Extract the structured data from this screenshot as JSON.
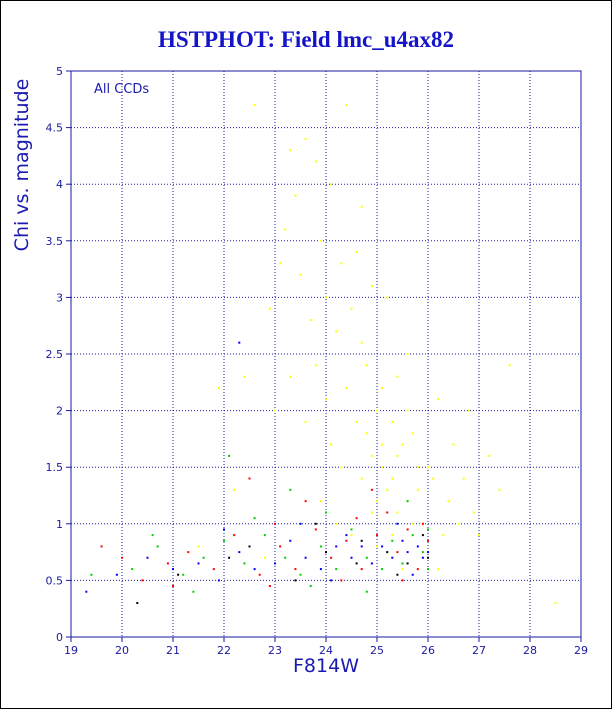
{
  "chart_data": {
    "type": "scatter",
    "title": "HSTPHOT: Field lmc_u4ax82",
    "xlabel": "F814W",
    "ylabel": "Chi vs. magnitude",
    "annotation": "All CCDs",
    "xlim": [
      19,
      29
    ],
    "ylim": [
      0,
      5
    ],
    "xticks": [
      19,
      20,
      21,
      22,
      23,
      24,
      25,
      26,
      27,
      28,
      29
    ],
    "yticks": [
      0,
      0.5,
      1,
      1.5,
      2,
      2.5,
      3,
      3.5,
      4,
      4.5,
      5
    ],
    "xtick_labels": [
      "19",
      "20",
      "21",
      "22",
      "23",
      "24",
      "25",
      "26",
      "27",
      "28",
      "29"
    ],
    "ytick_labels": [
      "0",
      "0.5",
      "1",
      "1.5",
      "2",
      "2.5",
      "3",
      "3.5",
      "4",
      "4.5",
      "5"
    ],
    "grid": true,
    "series": [
      {
        "color": "#ffff00",
        "points": [
          [
            22.6,
            4.7
          ],
          [
            23.3,
            4.3
          ],
          [
            23.6,
            4.4
          ],
          [
            23.8,
            4.2
          ],
          [
            24.1,
            4.0
          ],
          [
            24.4,
            4.7
          ],
          [
            23.4,
            3.9
          ],
          [
            24.7,
            3.8
          ],
          [
            23.2,
            3.6
          ],
          [
            23.9,
            3.5
          ],
          [
            24.3,
            3.3
          ],
          [
            24.6,
            3.4
          ],
          [
            23.5,
            3.2
          ],
          [
            24.9,
            3.1
          ],
          [
            22.9,
            2.9
          ],
          [
            23.7,
            2.8
          ],
          [
            24.2,
            2.7
          ],
          [
            24.5,
            2.9
          ],
          [
            25.2,
            3.0
          ],
          [
            25.6,
            2.5
          ],
          [
            23.3,
            2.3
          ],
          [
            23.8,
            2.4
          ],
          [
            24.0,
            2.1
          ],
          [
            24.4,
            2.2
          ],
          [
            24.8,
            2.4
          ],
          [
            25.0,
            2.0
          ],
          [
            25.3,
            1.9
          ],
          [
            25.7,
            1.8
          ],
          [
            26.2,
            2.1
          ],
          [
            26.8,
            2.0
          ],
          [
            27.2,
            1.6
          ],
          [
            27.6,
            2.4
          ],
          [
            23.6,
            1.9
          ],
          [
            24.1,
            1.7
          ],
          [
            24.6,
            1.9
          ],
          [
            24.9,
            1.6
          ],
          [
            25.1,
            1.5
          ],
          [
            25.3,
            1.4
          ],
          [
            25.5,
            1.7
          ],
          [
            25.8,
            1.3
          ],
          [
            26.0,
            1.5
          ],
          [
            26.4,
            1.2
          ],
          [
            26.9,
            1.1
          ],
          [
            27.4,
            1.3
          ],
          [
            24.3,
            1.5
          ],
          [
            24.7,
            1.4
          ],
          [
            25.0,
            1.2
          ],
          [
            25.2,
            1.3
          ],
          [
            25.4,
            1.1
          ],
          [
            25.6,
            1.2
          ],
          [
            25.9,
            1.0
          ],
          [
            26.3,
            0.9
          ],
          [
            26.6,
            1.0
          ],
          [
            24.8,
            1.8
          ],
          [
            25.1,
            1.7
          ],
          [
            25.4,
            1.6
          ],
          [
            25.8,
            1.5
          ],
          [
            26.1,
            1.4
          ],
          [
            23.0,
            2.0
          ],
          [
            22.4,
            2.3
          ],
          [
            21.9,
            2.2
          ],
          [
            22.2,
            1.3
          ],
          [
            21.5,
            0.8
          ],
          [
            22.8,
            0.7
          ],
          [
            24.5,
            0.9
          ],
          [
            25.0,
            0.8
          ],
          [
            25.5,
            0.6
          ],
          [
            25.9,
            0.7
          ],
          [
            24.9,
            1.1
          ],
          [
            25.3,
            0.9
          ],
          [
            25.7,
            1.0
          ],
          [
            26.2,
            0.6
          ],
          [
            23.9,
            1.2
          ],
          [
            24.2,
            1.0
          ],
          [
            25.1,
            2.2
          ],
          [
            25.6,
            2.0
          ],
          [
            26.5,
            1.7
          ],
          [
            27.0,
            0.9
          ],
          [
            28.5,
            0.3
          ],
          [
            24.7,
            2.6
          ],
          [
            23.1,
            3.3
          ],
          [
            24.0,
            3.0
          ],
          [
            25.4,
            2.3
          ],
          [
            26.7,
            1.4
          ]
        ]
      },
      {
        "color": "#ff0000",
        "points": [
          [
            19.6,
            0.8
          ],
          [
            20.4,
            0.5
          ],
          [
            20.9,
            0.65
          ],
          [
            21.3,
            0.75
          ],
          [
            21.8,
            0.6
          ],
          [
            22.2,
            0.9
          ],
          [
            22.7,
            0.55
          ],
          [
            23.1,
            0.8
          ],
          [
            23.4,
            0.6
          ],
          [
            23.8,
            0.95
          ],
          [
            24.1,
            0.7
          ],
          [
            24.4,
            0.85
          ],
          [
            24.7,
            0.6
          ],
          [
            25.0,
            0.9
          ],
          [
            25.2,
            1.1
          ],
          [
            25.4,
            0.75
          ],
          [
            25.6,
            0.95
          ],
          [
            25.8,
            0.6
          ],
          [
            26.0,
            0.85
          ],
          [
            22.5,
            1.4
          ],
          [
            23.6,
            1.2
          ],
          [
            24.9,
            1.3
          ],
          [
            21.0,
            0.45
          ],
          [
            22.9,
            0.45
          ],
          [
            24.3,
            0.5
          ],
          [
            25.5,
            0.5
          ],
          [
            23.0,
            1.0
          ],
          [
            24.6,
            1.05
          ],
          [
            25.9,
            1.0
          ],
          [
            20.0,
            0.7
          ]
        ]
      },
      {
        "color": "#00cc00",
        "points": [
          [
            19.4,
            0.55
          ],
          [
            20.2,
            0.6
          ],
          [
            20.7,
            0.8
          ],
          [
            21.2,
            0.55
          ],
          [
            21.6,
            0.7
          ],
          [
            22.0,
            0.85
          ],
          [
            22.4,
            0.65
          ],
          [
            22.8,
            0.9
          ],
          [
            23.2,
            0.7
          ],
          [
            23.5,
            0.55
          ],
          [
            23.9,
            0.8
          ],
          [
            24.2,
            0.6
          ],
          [
            24.5,
            0.95
          ],
          [
            24.8,
            0.7
          ],
          [
            25.1,
            0.6
          ],
          [
            25.3,
            0.85
          ],
          [
            25.5,
            0.65
          ],
          [
            25.7,
            0.9
          ],
          [
            25.9,
            0.75
          ],
          [
            26.0,
            0.6
          ],
          [
            22.1,
            1.6
          ],
          [
            23.3,
            1.3
          ],
          [
            24.0,
            1.1
          ],
          [
            25.6,
            1.2
          ],
          [
            21.4,
            0.4
          ],
          [
            23.7,
            0.45
          ],
          [
            24.8,
            0.4
          ],
          [
            26.0,
            0.95
          ],
          [
            20.6,
            0.9
          ],
          [
            22.6,
            1.05
          ]
        ]
      },
      {
        "color": "#0000ff",
        "points": [
          [
            19.3,
            0.4
          ],
          [
            19.9,
            0.55
          ],
          [
            20.5,
            0.7
          ],
          [
            21.0,
            0.6
          ],
          [
            21.5,
            0.65
          ],
          [
            21.9,
            0.5
          ],
          [
            22.3,
            0.75
          ],
          [
            22.6,
            0.6
          ],
          [
            23.0,
            0.65
          ],
          [
            23.3,
            0.85
          ],
          [
            23.6,
            0.7
          ],
          [
            23.9,
            0.6
          ],
          [
            24.2,
            0.8
          ],
          [
            24.5,
            0.7
          ],
          [
            24.7,
            0.8
          ],
          [
            24.9,
            0.65
          ],
          [
            25.1,
            0.8
          ],
          [
            25.3,
            0.7
          ],
          [
            25.5,
            0.85
          ],
          [
            25.6,
            0.75
          ],
          [
            25.8,
            0.8
          ],
          [
            25.9,
            0.7
          ],
          [
            26.0,
            0.75
          ],
          [
            22.3,
            2.6
          ],
          [
            23.5,
            1.0
          ],
          [
            24.4,
            0.9
          ],
          [
            25.4,
            1.0
          ],
          [
            25.7,
            0.55
          ],
          [
            22.0,
            0.95
          ],
          [
            24.1,
            0.5
          ]
        ]
      },
      {
        "color": "#000000",
        "points": [
          [
            20.3,
            0.3
          ],
          [
            21.1,
            0.55
          ],
          [
            22.5,
            0.8
          ],
          [
            23.4,
            0.5
          ],
          [
            24.0,
            0.75
          ],
          [
            24.6,
            0.65
          ],
          [
            25.2,
            0.75
          ],
          [
            25.6,
            0.65
          ],
          [
            25.9,
            0.9
          ],
          [
            23.8,
            1.0
          ],
          [
            24.7,
            0.85
          ],
          [
            25.4,
            0.55
          ],
          [
            26.0,
            0.7
          ],
          [
            22.1,
            0.7
          ]
        ]
      }
    ]
  }
}
